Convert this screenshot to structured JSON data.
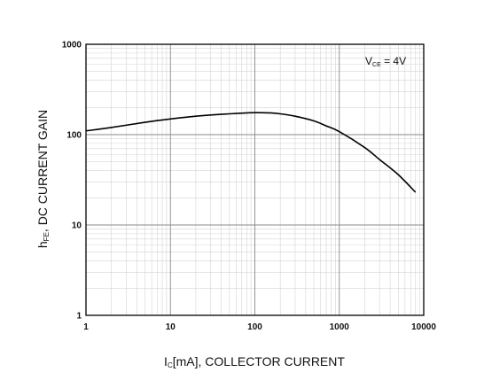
{
  "chart_data": {
    "type": "line",
    "title": "",
    "x_scale": "log",
    "y_scale": "log",
    "xlim": [
      1,
      10000
    ],
    "ylim": [
      1,
      1000
    ],
    "grid": true,
    "x_ticks": [
      "1",
      "10",
      "100",
      "1000",
      "10000"
    ],
    "y_ticks": [
      "1",
      "10",
      "100",
      "1000"
    ],
    "xlabel": {
      "main": "I",
      "sub": "C",
      "rest": "[mA], COLLECTOR CURRENT"
    },
    "ylabel": {
      "main": "h",
      "sub": "FE",
      "rest": ", DC CURRENT GAIN"
    },
    "annotation": {
      "main": "V",
      "sub": "CE",
      "rest": " = 4V"
    },
    "series": [
      {
        "name": "",
        "x": [
          1,
          2,
          5,
          10,
          20,
          50,
          100,
          150,
          200,
          300,
          500,
          700,
          1000,
          2000,
          3000,
          5000,
          8000
        ],
        "values": [
          110,
          120,
          137,
          149,
          160,
          170,
          175,
          174,
          170,
          160,
          142,
          125,
          108,
          72,
          53,
          36,
          23
        ]
      }
    ]
  }
}
